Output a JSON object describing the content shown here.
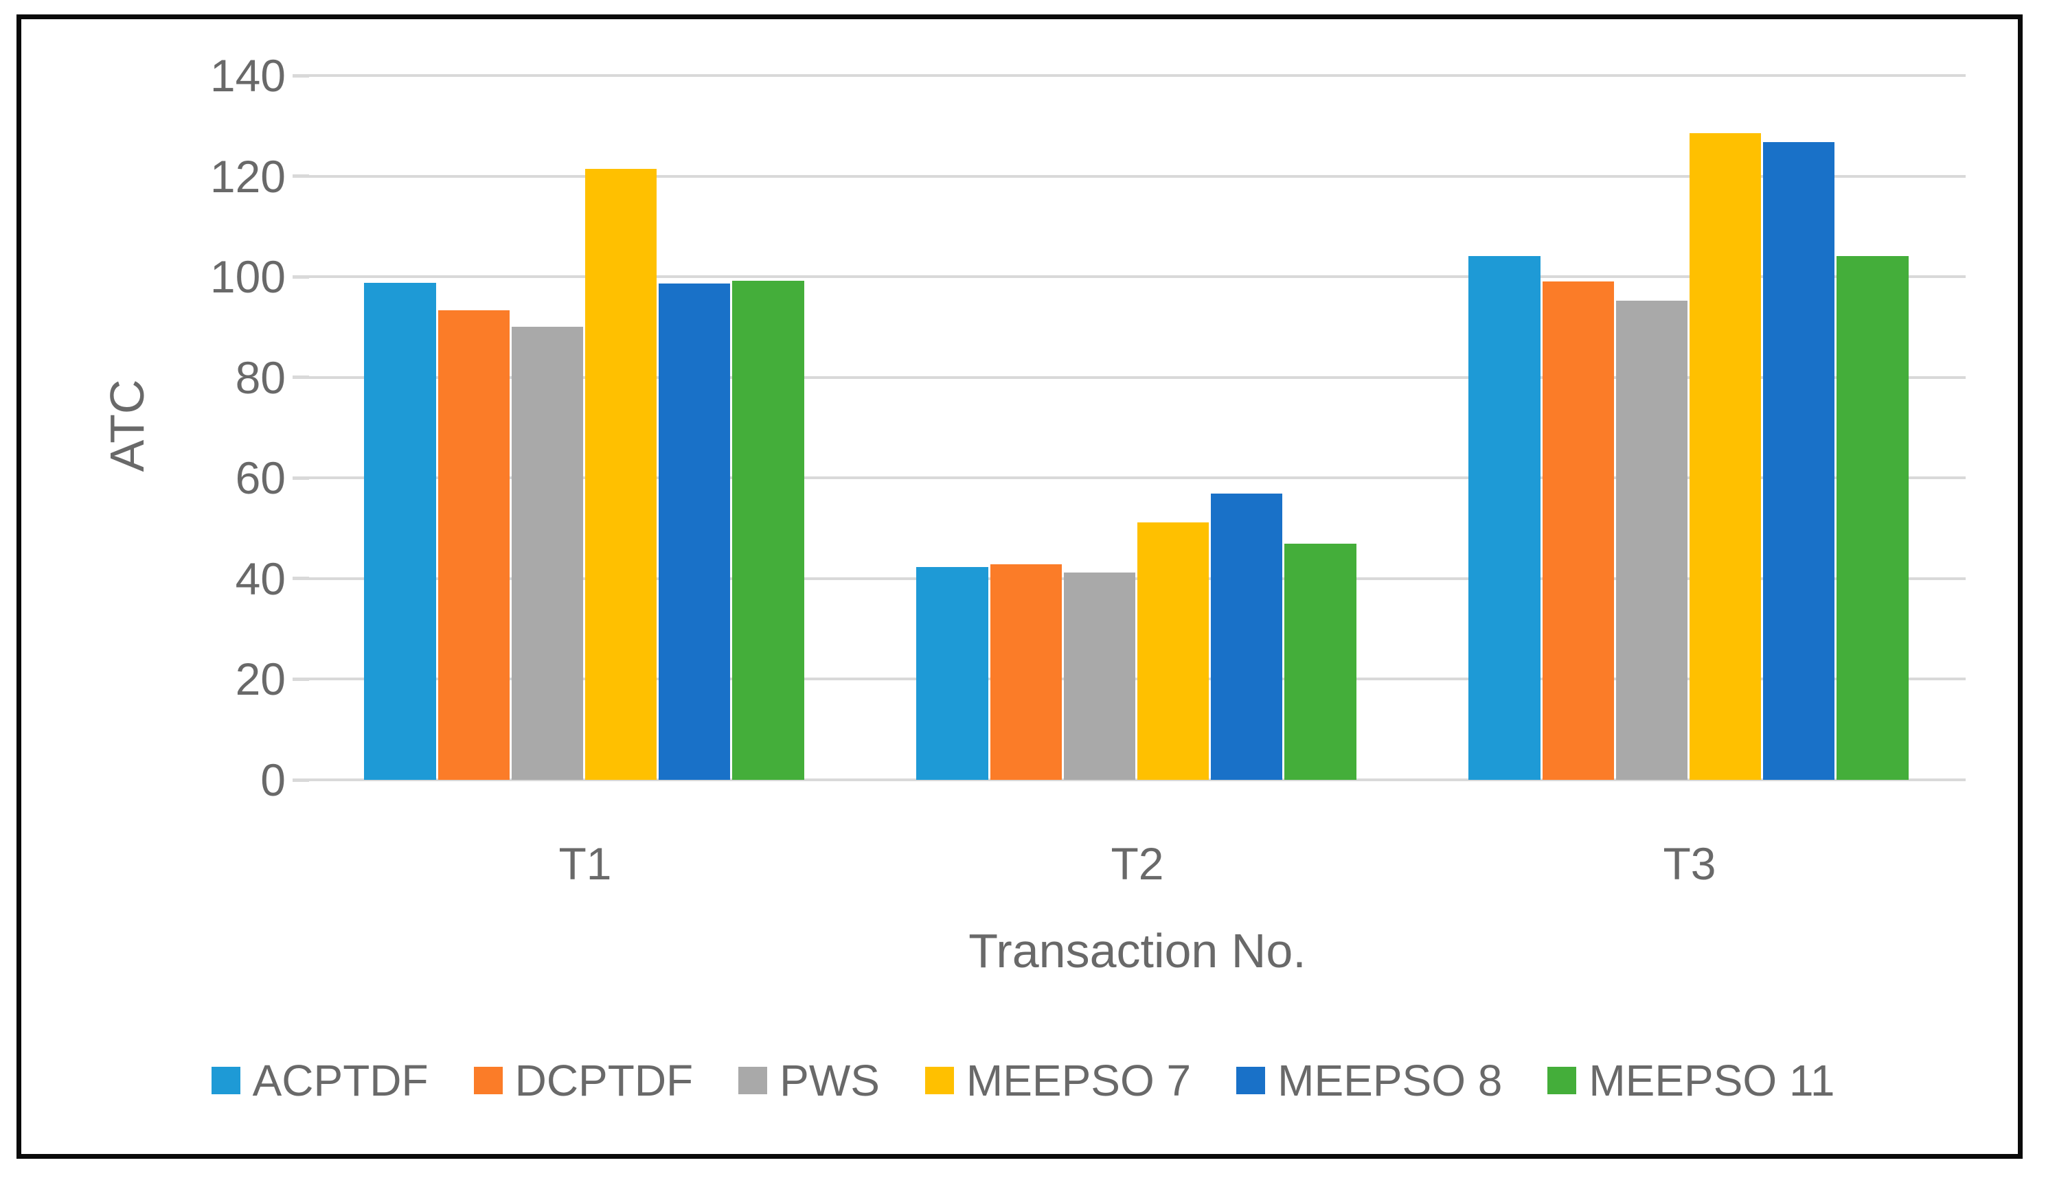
{
  "chart_data": {
    "type": "bar",
    "title": "",
    "xlabel": "Transaction No.",
    "ylabel": "ATC",
    "categories": [
      "T1",
      "T2",
      "T3"
    ],
    "series": [
      {
        "name": "ACPTDF",
        "color": "#1E9AD6",
        "values": [
          98.8,
          42.3,
          104.1
        ]
      },
      {
        "name": "DCPTDF",
        "color": "#FB7C28",
        "values": [
          93.4,
          42.9,
          99.0
        ]
      },
      {
        "name": "PWS",
        "color": "#A9A9A9",
        "values": [
          90.0,
          41.2,
          95.3
        ]
      },
      {
        "name": "MEEPSO 7",
        "color": "#FFC000",
        "values": [
          121.5,
          51.2,
          128.6
        ]
      },
      {
        "name": "MEEPSO 8",
        "color": "#1971C8",
        "values": [
          98.7,
          56.9,
          126.8
        ]
      },
      {
        "name": "MEEPSO 11",
        "color": "#44AE3A",
        "values": [
          99.2,
          47.0,
          104.1
        ]
      }
    ],
    "ylim": [
      0,
      140
    ],
    "yticks": [
      0,
      20,
      40,
      60,
      80,
      100,
      120,
      140
    ],
    "grid": "horizontal",
    "gridline_color": "#D9D9D9",
    "text_color": "#696969",
    "border_color": "#0A0A0A",
    "legend_position": "bottom"
  }
}
